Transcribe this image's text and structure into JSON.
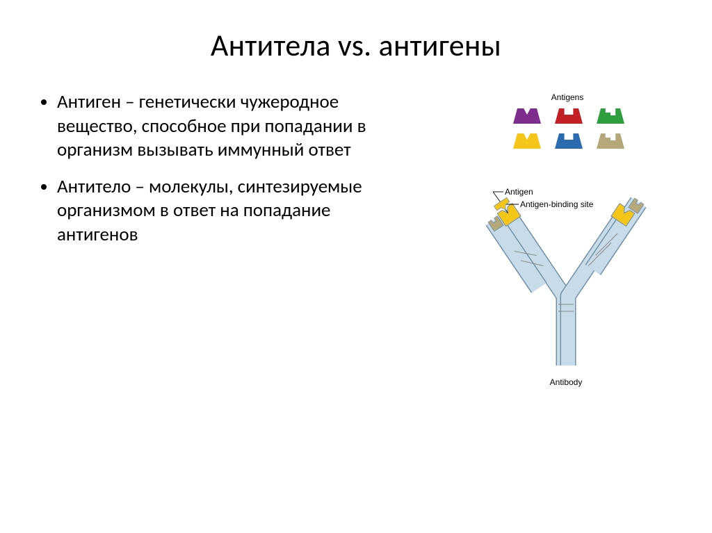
{
  "title": "Антитела vs. антигены",
  "bullets": [
    "Антиген – генетически чужеродное вещество, способное при попадании в организм вызывать иммунный ответ",
    "Антитело – молекулы, синтезируемые организмом в ответ на попадание антигенов"
  ],
  "diagram": {
    "type": "infographic",
    "background_color": "#ffffff",
    "labels": {
      "antigens_title": "Antigens",
      "antigen": "Antigen",
      "binding_site": "Antigen-binding site",
      "antibody": "Antibody"
    },
    "label_fontsize": 11,
    "label_color": "#000000",
    "antigens_row": [
      {
        "fill": "#7c2d8e",
        "notch": "wedge"
      },
      {
        "fill": "#c32026",
        "notch": "square"
      },
      {
        "fill": "#2e9e3f",
        "notch": "step"
      },
      {
        "fill": "#f5c518",
        "notch": "wedge"
      },
      {
        "fill": "#2b6cb0",
        "notch": "square"
      },
      {
        "fill": "#b5a87a",
        "notch": "step"
      }
    ],
    "antibody": {
      "chain_fill": "#c7dbe8",
      "chain_stroke": "#6f90a6",
      "chain_stroke_width": 1.5,
      "variable_cap_left": "#f5c518",
      "variable_small_left": "#b5a87a",
      "variable_cap_right": "#f5c518",
      "variable_small_right": "#b5a87a",
      "disulfide_color": "#888888",
      "leader_color": "#000000"
    }
  }
}
